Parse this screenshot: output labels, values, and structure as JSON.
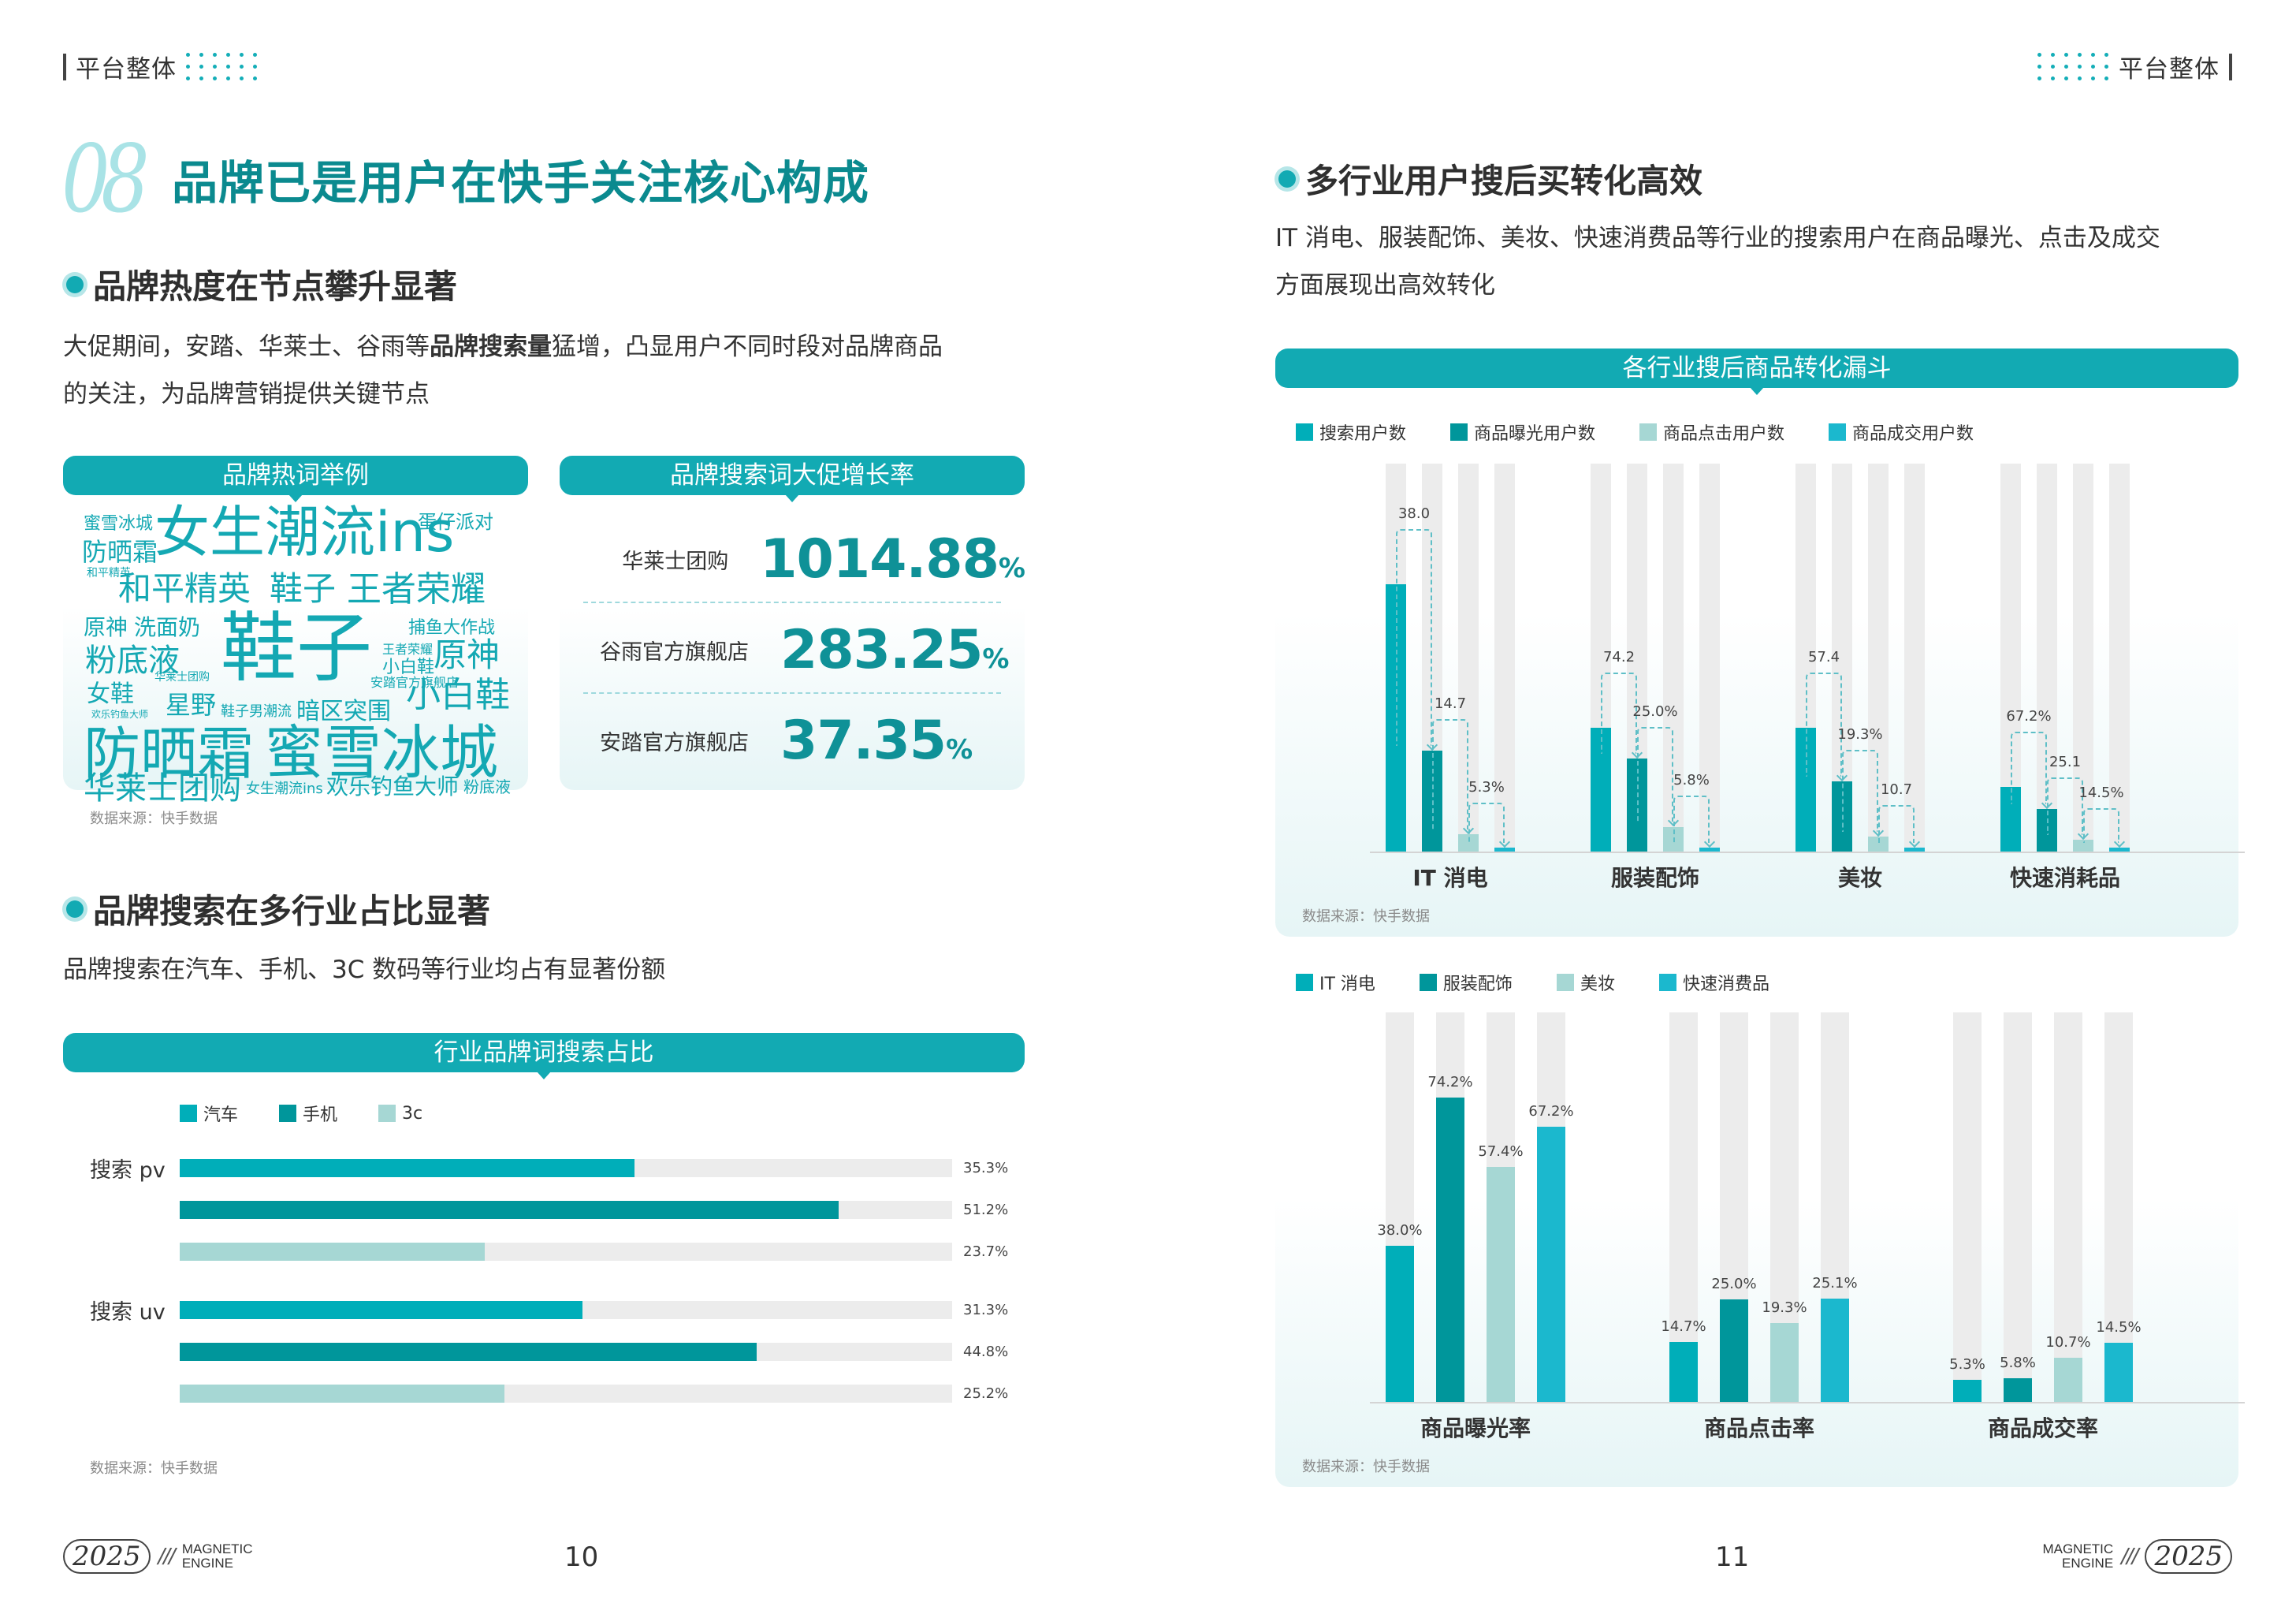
{
  "header": {
    "section_label": "平台整体"
  },
  "left": {
    "title_number": "08",
    "title": "品牌已是用户在快手关注核心构成",
    "section1": {
      "heading": "品牌热度在节点攀升显著",
      "para_pre": "大促期间，安踏、华莱士、谷雨等",
      "para_bold": "品牌搜索量",
      "para_post": "猛增，凸显用户不同时段对品牌商品",
      "para_line2": "的关注，为品牌营销提供关键节点"
    },
    "wordcloud": {
      "title": "品牌热词举例",
      "words": [
        "蜜雪冰城",
        "女生潮流ins",
        "蛋仔派对",
        "防晒霜",
        "和平精英",
        "和平精英",
        "鞋子",
        "王者荣耀",
        "原神",
        "洗面奶",
        "捕鱼大作战",
        "粉底液",
        "鞋子",
        "王者荣耀",
        "原神",
        "小白鞋",
        "华莱士团购",
        "安踏官方旗舰店",
        "女鞋",
        "星野",
        "欢乐钓鱼大师",
        "鞋子男潮流",
        "暗区突围",
        "小白鞋",
        "防晒霜",
        "蜜雪冰城",
        "华莱士团购",
        "女生潮流ins",
        "欢乐钓鱼大师",
        "粉底液"
      ]
    },
    "growth": {
      "title": "品牌搜索词大促增长率",
      "rows": [
        {
          "name": "华莱士团购",
          "value": "1014.88",
          "unit": "%"
        },
        {
          "name": "谷雨官方旗舰店",
          "value": "283.25",
          "unit": "%"
        },
        {
          "name": "安踏官方旗舰店",
          "value": "37.35",
          "unit": "%"
        }
      ]
    },
    "source1": "数据来源：快手数据",
    "section2": {
      "heading": "品牌搜索在多行业占比显著",
      "para": "品牌搜索在汽车、手机、3C 数码等行业均占有显著份额"
    },
    "hbar": {
      "title": "行业品牌词搜索占比"
    },
    "source2": "数据来源：快手数据",
    "page_number": "10"
  },
  "right": {
    "section": {
      "heading": "多行业用户搜后买转化高效",
      "para_line1": "IT 消电、服装配饰、美妆、快速消费品等行业的搜索用户在商品曝光、点击及成交",
      "para_line2": "方面展现出高效转化"
    },
    "funnel_title": "各行业搜后商品转化漏斗",
    "source1": "数据来源：快手数据",
    "source2": "数据来源：快手数据",
    "page_number": "11"
  },
  "footer": {
    "year": "2025",
    "slashes": "///",
    "brand_line1": "MAGNETIC",
    "brand_line2": "ENGINE"
  },
  "colors": {
    "teal": "#00AEB9",
    "dark_teal": "#00969B",
    "light_teal": "#A6D7D4",
    "cyan": "#1BB8CE",
    "track": "#ECECEC",
    "accent": "#12AAB3"
  },
  "chart_data": [
    {
      "type": "bar",
      "orientation": "horizontal",
      "title": "行业品牌词搜索占比",
      "categories": [
        "搜索 pv",
        "搜索 uv"
      ],
      "series": [
        {
          "name": "汽车",
          "color": "#00AEB9",
          "values": [
            35.3,
            31.3
          ],
          "labels": [
            "35.3%",
            "31.3%"
          ]
        },
        {
          "name": "手机",
          "color": "#00969B",
          "values": [
            51.2,
            44.8
          ],
          "labels": [
            "51.2%",
            "44.8%"
          ]
        },
        {
          "name": "3c",
          "color": "#A6D7D4",
          "values": [
            23.7,
            25.2
          ],
          "labels": [
            "23.7%",
            "25.2%"
          ]
        }
      ],
      "xlim": [
        0,
        60
      ],
      "source": "数据来源：快手数据"
    },
    {
      "type": "bar",
      "title": "各行业搜后商品转化漏斗",
      "categories": [
        "IT 消电",
        "服装配饰",
        "美妆",
        "快速消耗品"
      ],
      "series": [
        {
          "name": "搜索用户数",
          "color": "#00AEB9",
          "values": [
            69,
            32,
            32,
            16.6
          ]
        },
        {
          "name": "商品曝光用户数",
          "color": "#00969B",
          "values": [
            26,
            24,
            18,
            11
          ]
        },
        {
          "name": "商品点击用户数",
          "color": "#A6D7D4",
          "values": [
            4.5,
            6.4,
            3.8,
            3
          ]
        },
        {
          "name": "商品成交用户数",
          "color": "#1BB8CE",
          "values": [
            1,
            1,
            1,
            1
          ]
        }
      ],
      "step_labels": [
        [
          "38.0",
          "14.7",
          "5.3%"
        ],
        [
          "74.2",
          "25.0%",
          "5.8%"
        ],
        [
          "57.4",
          "19.3%",
          "10.7"
        ],
        [
          "67.2%",
          "25.1",
          "14.5%"
        ]
      ],
      "ylim": [
        0,
        100
      ],
      "note": "bar heights are relative funnel indices estimated from pixels",
      "source": "数据来源：快手数据"
    },
    {
      "type": "bar",
      "title": "",
      "categories": [
        "商品曝光率",
        "商品点击率",
        "商品成交率"
      ],
      "series": [
        {
          "name": "IT 消电",
          "color": "#00AEB9",
          "values": [
            38.0,
            14.7,
            5.3
          ]
        },
        {
          "name": "服装配饰",
          "color": "#00969B",
          "values": [
            74.2,
            25.0,
            5.8
          ]
        },
        {
          "name": "美妆",
          "color": "#A6D7D4",
          "values": [
            57.4,
            19.3,
            10.7
          ]
        },
        {
          "name": "快速消费品",
          "color": "#1BB8CE",
          "values": [
            67.2,
            25.1,
            14.5
          ]
        }
      ],
      "ylabel": "%",
      "ylim": [
        0,
        95
      ],
      "source": "数据来源：快手数据"
    }
  ]
}
